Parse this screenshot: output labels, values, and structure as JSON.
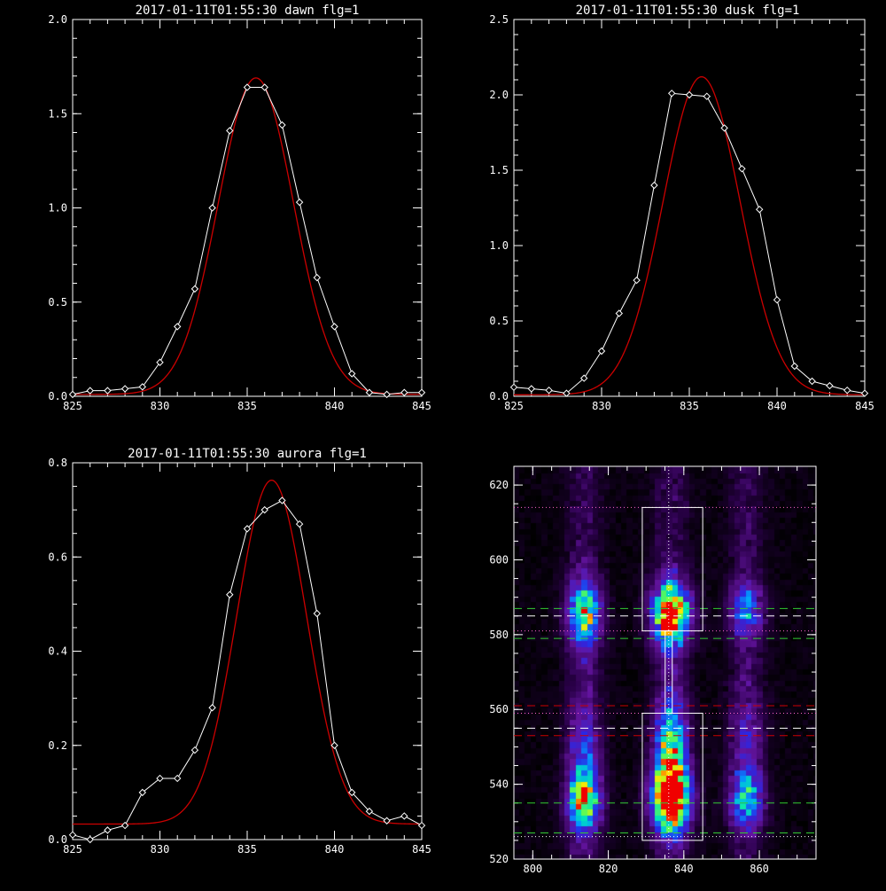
{
  "colors": {
    "background": "#000000",
    "axes": "#ffffff",
    "data_line": "#ffffff",
    "fit_line": "#cc0000"
  },
  "chart_data": [
    {
      "type": "line",
      "title": "2017-01-11T01:55:30 dawn flg=1",
      "xlim": [
        825,
        845
      ],
      "ylim": [
        0,
        2.0
      ],
      "xticks": [
        "825",
        "830",
        "835",
        "840",
        "845"
      ],
      "yticks": [
        "0.0",
        "0.5",
        "1.0",
        "1.5",
        "2.0"
      ],
      "x": [
        825,
        826,
        827,
        828,
        829,
        830,
        831,
        832,
        833,
        834,
        835,
        836,
        837,
        838,
        839,
        840,
        841,
        842,
        843,
        844,
        845
      ],
      "series": [
        {
          "values": [
            0.01,
            0.03,
            0.03,
            0.04,
            0.05,
            0.18,
            0.37,
            0.57,
            1.0,
            1.41,
            1.64,
            1.64,
            1.44,
            1.03,
            0.63,
            0.37,
            0.12,
            0.02,
            0.01,
            0.02,
            0.02
          ]
        }
      ],
      "fit": {
        "amplitude": 1.68,
        "center": 835.5,
        "sigma": 2.15,
        "offset": 0.01
      }
    },
    {
      "type": "line",
      "title": "2017-01-11T01:55:30 dusk flg=1",
      "xlim": [
        825,
        845
      ],
      "ylim": [
        0,
        2.5
      ],
      "xticks": [
        "825",
        "830",
        "835",
        "840",
        "845"
      ],
      "yticks": [
        "0.0",
        "0.5",
        "1.0",
        "1.5",
        "2.0",
        "2.5"
      ],
      "x": [
        825,
        826,
        827,
        828,
        829,
        830,
        831,
        832,
        833,
        834,
        835,
        836,
        837,
        838,
        839,
        840,
        841,
        842,
        843,
        844,
        845
      ],
      "series": [
        {
          "values": [
            0.06,
            0.05,
            0.04,
            0.02,
            0.12,
            0.3,
            0.55,
            0.77,
            1.4,
            2.01,
            2.0,
            1.99,
            1.78,
            1.51,
            1.24,
            0.64,
            0.2,
            0.1,
            0.07,
            0.04,
            0.02
          ]
        }
      ],
      "fit": {
        "amplitude": 2.11,
        "center": 835.7,
        "sigma": 2.2,
        "offset": 0.01
      }
    },
    {
      "type": "line",
      "title": "2017-01-11T01:55:30 aurora flg=1",
      "xlim": [
        825,
        845
      ],
      "ylim": [
        0,
        0.8
      ],
      "xticks": [
        "825",
        "830",
        "835",
        "840",
        "845"
      ],
      "yticks": [
        "0.0",
        "0.2",
        "0.4",
        "0.6",
        "0.8"
      ],
      "x": [
        825,
        826,
        827,
        828,
        829,
        830,
        831,
        832,
        833,
        834,
        835,
        836,
        837,
        838,
        839,
        840,
        841,
        842,
        843,
        844,
        845
      ],
      "series": [
        {
          "values": [
            0.01,
            0.0,
            0.02,
            0.03,
            0.1,
            0.13,
            0.13,
            0.19,
            0.28,
            0.52,
            0.66,
            0.7,
            0.72,
            0.67,
            0.48,
            0.2,
            0.1,
            0.06,
            0.04,
            0.05,
            0.03
          ]
        }
      ],
      "fit": {
        "amplitude": 0.73,
        "center": 836.4,
        "sigma": 2.0,
        "offset": 0.033
      }
    },
    {
      "type": "heatmap",
      "title": "",
      "xlim": [
        795,
        875
      ],
      "ylim": [
        520,
        625
      ],
      "xticks": [
        "800",
        "820",
        "840",
        "860"
      ],
      "yticks": [
        "520",
        "540",
        "560",
        "580",
        "600",
        "620"
      ],
      "columns": [
        {
          "x": 813,
          "blobs": [
            {
              "y": 585,
              "amp": 0.75,
              "w": 3,
              "h": 6
            },
            {
              "y": 535,
              "amp": 0.6,
              "w": 3,
              "h": 5
            },
            {
              "y": 545,
              "amp": 0.35,
              "w": 3,
              "h": 12
            }
          ]
        },
        {
          "x": 836,
          "blobs": [
            {
              "y": 585,
              "amp": 1.0,
              "w": 3.5,
              "h": 6
            },
            {
              "y": 535,
              "amp": 1.0,
              "w": 3.5,
              "h": 6
            },
            {
              "y": 548,
              "amp": 0.7,
              "w": 3,
              "h": 10
            }
          ]
        },
        {
          "x": 856,
          "blobs": [
            {
              "y": 586,
              "amp": 0.45,
              "w": 3,
              "h": 5
            },
            {
              "y": 535,
              "amp": 0.45,
              "w": 3,
              "h": 5
            },
            {
              "y": 548,
              "amp": 0.2,
              "w": 3,
              "h": 12
            }
          ]
        }
      ],
      "boxes": [
        {
          "x0": 829,
          "x1": 845,
          "y0": 581,
          "y1": 614
        },
        {
          "x0": 829,
          "x1": 845,
          "y0": 525,
          "y1": 559
        }
      ],
      "vline_x": 836,
      "hlines": [
        {
          "y": 614,
          "color": "#ff66cc",
          "style": "dotted"
        },
        {
          "y": 581,
          "color": "#ff66cc",
          "style": "dotted"
        },
        {
          "y": 559,
          "color": "#ff66cc",
          "style": "dotted"
        },
        {
          "y": 526,
          "color": "#ffffff",
          "style": "dotted"
        },
        {
          "y": 587,
          "color": "#33cc33",
          "style": "dashed"
        },
        {
          "y": 585,
          "color": "#ffffff",
          "style": "dashed"
        },
        {
          "y": 579,
          "color": "#33cc33",
          "style": "dashed"
        },
        {
          "y": 561,
          "color": "#cc0000",
          "style": "dashed"
        },
        {
          "y": 555,
          "color": "#ffffff",
          "style": "dashed"
        },
        {
          "y": 553,
          "color": "#cc0000",
          "style": "dashed"
        },
        {
          "y": 535,
          "color": "#33cc33",
          "style": "dashed"
        },
        {
          "y": 527,
          "color": "#33cc33",
          "style": "dashed"
        }
      ]
    }
  ]
}
